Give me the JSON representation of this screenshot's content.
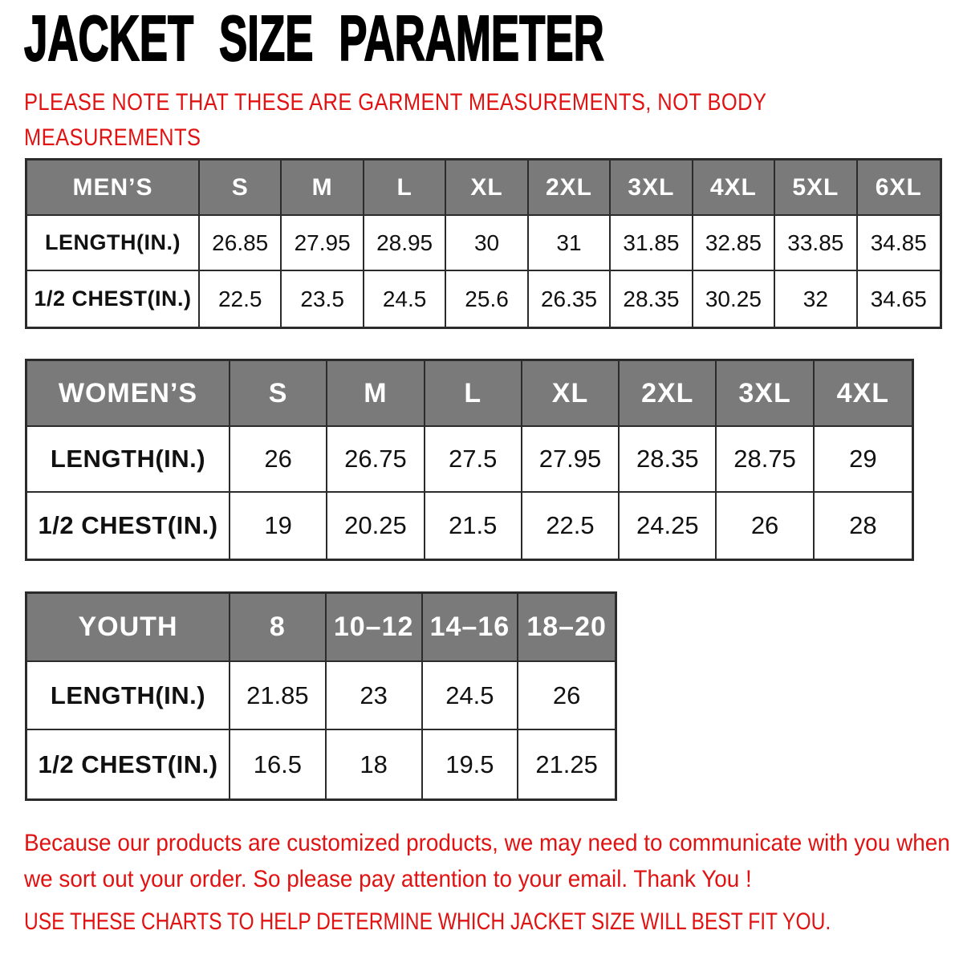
{
  "header": {
    "title": "JACKET SIZE PARAMETER",
    "note": "PLEASE NOTE THAT THESE ARE GARMENT MEASUREMENTS, NOT BODY MEASUREMENTS"
  },
  "colors": {
    "accent_red": "#e01212",
    "header_gray": "#7a7a7a",
    "border_dark": "#2b2b2b",
    "header_text": "#ffffff",
    "body_text": "#111111"
  },
  "tables": {
    "mens": {
      "header": [
        "MEN’S",
        "S",
        "M",
        "L",
        "XL",
        "2XL",
        "3XL",
        "4XL",
        "5XL",
        "6XL"
      ],
      "rows": [
        {
          "label": "LENGTH(IN.)",
          "values": [
            "26.85",
            "27.95",
            "28.95",
            "30",
            "31",
            "31.85",
            "32.85",
            "33.85",
            "34.85"
          ]
        },
        {
          "label": "1/2 CHEST(IN.)",
          "values": [
            "22.5",
            "23.5",
            "24.5",
            "25.6",
            "26.35",
            "28.35",
            "30.25",
            "32",
            "34.65"
          ]
        }
      ]
    },
    "womens": {
      "header": [
        "WOMEN’S",
        "S",
        "M",
        "L",
        "XL",
        "2XL",
        "3XL",
        "4XL"
      ],
      "rows": [
        {
          "label": "LENGTH(IN.)",
          "values": [
            "26",
            "26.75",
            "27.5",
            "27.95",
            "28.35",
            "28.75",
            "29"
          ]
        },
        {
          "label": "1/2 CHEST(IN.)",
          "values": [
            "19",
            "20.25",
            "21.5",
            "22.5",
            "24.25",
            "26",
            "28"
          ]
        }
      ]
    },
    "youth": {
      "header": [
        "YOUTH",
        "8",
        "10–12",
        "14–16",
        "18–20"
      ],
      "rows": [
        {
          "label": "LENGTH(IN.)",
          "values": [
            "21.85",
            "23",
            "24.5",
            "26"
          ]
        },
        {
          "label": "1/2 CHEST(IN.)",
          "values": [
            "16.5",
            "18",
            "19.5",
            "21.25"
          ]
        }
      ]
    }
  },
  "footer": {
    "paragraph": "Because our products are customized products, we may need to communicate with you when we sort out your order. So please pay attention to your email. Thank You !",
    "note": "USE THESE CHARTS TO HELP DETERMINE WHICH JACKET SIZE WILL BEST FIT YOU."
  }
}
